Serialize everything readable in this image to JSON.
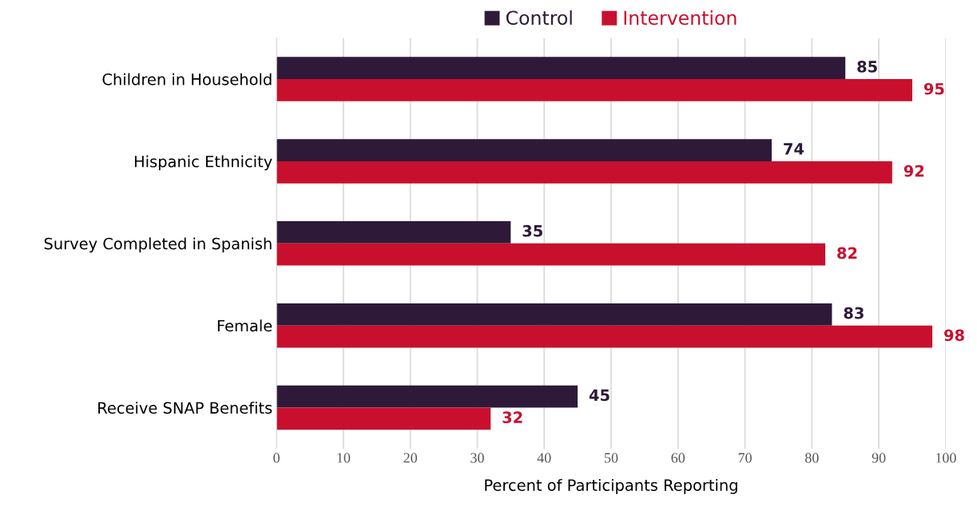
{
  "chart_data": {
    "type": "bar",
    "orientation": "horizontal",
    "xlabel": "Percent of Participants Reporting",
    "categories": [
      "Children in Household",
      "Hispanic Ethnicity",
      "Survey Completed in Spanish",
      "Female",
      "Receive SNAP Benefits"
    ],
    "series": [
      {
        "name": "Control",
        "color": "#2e1a38",
        "values": [
          85,
          74,
          35,
          83,
          45
        ]
      },
      {
        "name": "Intervention",
        "color": "#c8102e",
        "values": [
          95,
          92,
          82,
          98,
          32
        ]
      }
    ],
    "xlim": [
      0,
      100
    ],
    "xticks": [
      0,
      10,
      20,
      30,
      40,
      50,
      60,
      70,
      80,
      90,
      100
    ],
    "grid": "x",
    "legend": "top",
    "data_labels": true
  }
}
